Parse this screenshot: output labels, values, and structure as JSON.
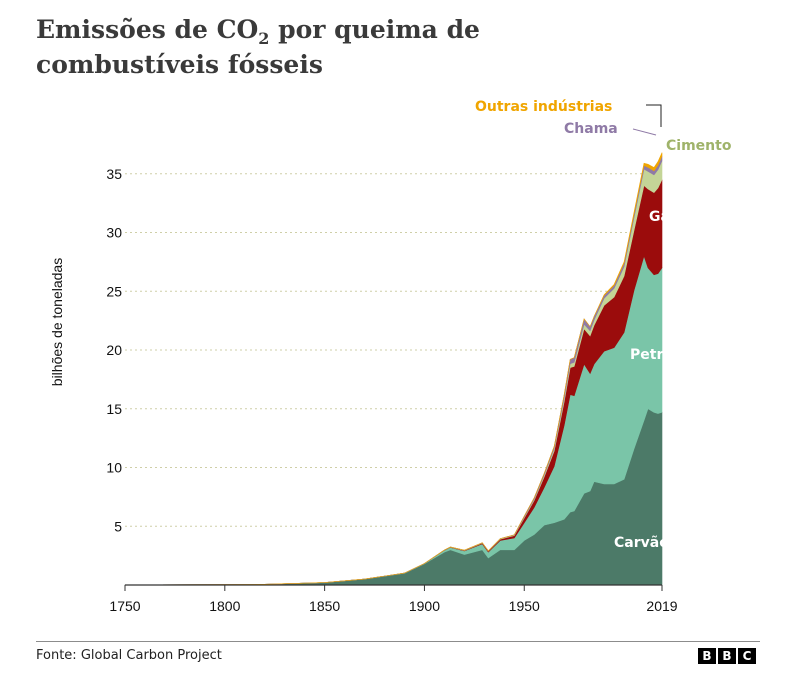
{
  "title": {
    "line1_pre": "Emissões de CO",
    "subscript": "2",
    "line1_post": " por queima de",
    "line2": "combustíveis fósseis"
  },
  "footer": {
    "source": "Fonte: Global Carbon Project",
    "logo_letters": [
      "B",
      "B",
      "C"
    ]
  },
  "chart_data": {
    "type": "area",
    "stacked": true,
    "ylabel": "bilhões de toneladas",
    "xlim": [
      1750,
      2019
    ],
    "ylim": [
      0,
      35
    ],
    "yticks": [
      5,
      10,
      15,
      20,
      25,
      30,
      35
    ],
    "xticks": [
      "1750",
      "1800",
      "1850",
      "1900",
      "1950",
      "2019"
    ],
    "grid": "horizontal dotted",
    "legend": "direct labels on right",
    "x": [
      1750,
      1800,
      1820,
      1850,
      1870,
      1890,
      1900,
      1910,
      1913,
      1920,
      1929,
      1932,
      1938,
      1945,
      1950,
      1955,
      1960,
      1965,
      1970,
      1973,
      1975,
      1980,
      1983,
      1985,
      1990,
      1995,
      2000,
      2005,
      2010,
      2012,
      2015,
      2017,
      2019
    ],
    "series": [
      {
        "name": "Carvão",
        "color": "#4c7a68",
        "values": [
          0.01,
          0.03,
          0.06,
          0.2,
          0.5,
          1.0,
          1.8,
          2.8,
          3.0,
          2.6,
          3.0,
          2.3,
          3.0,
          3.0,
          3.8,
          4.3,
          5.1,
          5.3,
          5.6,
          6.2,
          6.3,
          7.8,
          8.0,
          8.8,
          8.6,
          8.6,
          9.0,
          11.6,
          14.0,
          15.0,
          14.7,
          14.6,
          14.7
        ]
      },
      {
        "name": "Petróleo",
        "color": "#7ac5a8",
        "values": [
          0,
          0,
          0,
          0,
          0,
          0.01,
          0.02,
          0.15,
          0.2,
          0.3,
          0.5,
          0.5,
          0.8,
          1.0,
          1.5,
          2.3,
          3.2,
          4.8,
          8.0,
          10.0,
          9.8,
          11.0,
          10.0,
          10.0,
          11.3,
          11.6,
          12.5,
          13.5,
          14.0,
          12.0,
          11.7,
          11.9,
          12.3
        ]
      },
      {
        "name": "Gás",
        "color": "#9b0c0c",
        "values": [
          0,
          0,
          0,
          0,
          0,
          0,
          0,
          0.02,
          0.02,
          0.04,
          0.07,
          0.08,
          0.1,
          0.2,
          0.4,
          0.6,
          0.9,
          1.3,
          2.0,
          2.3,
          2.5,
          3.0,
          3.2,
          3.3,
          3.9,
          4.3,
          4.8,
          5.1,
          6.0,
          6.7,
          7.0,
          7.3,
          7.5
        ]
      },
      {
        "name": "Cimento",
        "color": "#c4d597",
        "values": [
          0,
          0,
          0,
          0,
          0,
          0,
          0.01,
          0.01,
          0.01,
          0.02,
          0.03,
          0.03,
          0.05,
          0.05,
          0.07,
          0.1,
          0.15,
          0.2,
          0.3,
          0.33,
          0.35,
          0.4,
          0.43,
          0.45,
          0.6,
          0.75,
          0.8,
          1.1,
          1.4,
          1.5,
          1.5,
          1.55,
          1.6
        ]
      },
      {
        "name": "Chama",
        "color": "#8f7aa6",
        "values": [
          0,
          0,
          0,
          0,
          0,
          0,
          0,
          0,
          0,
          0,
          0,
          0,
          0,
          0.02,
          0.1,
          0.12,
          0.15,
          0.2,
          0.3,
          0.38,
          0.4,
          0.45,
          0.35,
          0.3,
          0.25,
          0.25,
          0.3,
          0.3,
          0.3,
          0.35,
          0.35,
          0.38,
          0.4
        ]
      },
      {
        "name": "Outras indústrias",
        "color": "#f0a500",
        "values": [
          0,
          0,
          0,
          0,
          0,
          0,
          0,
          0,
          0,
          0,
          0,
          0,
          0,
          0,
          0,
          0,
          0,
          0,
          0,
          0,
          0,
          0,
          0,
          0,
          0.05,
          0.08,
          0.1,
          0.15,
          0.2,
          0.25,
          0.28,
          0.3,
          0.3
        ]
      }
    ],
    "labels": [
      "Outras indústrias",
      "Chama",
      "Cimento",
      "Gás",
      "Petróleo",
      "Carvão"
    ]
  }
}
